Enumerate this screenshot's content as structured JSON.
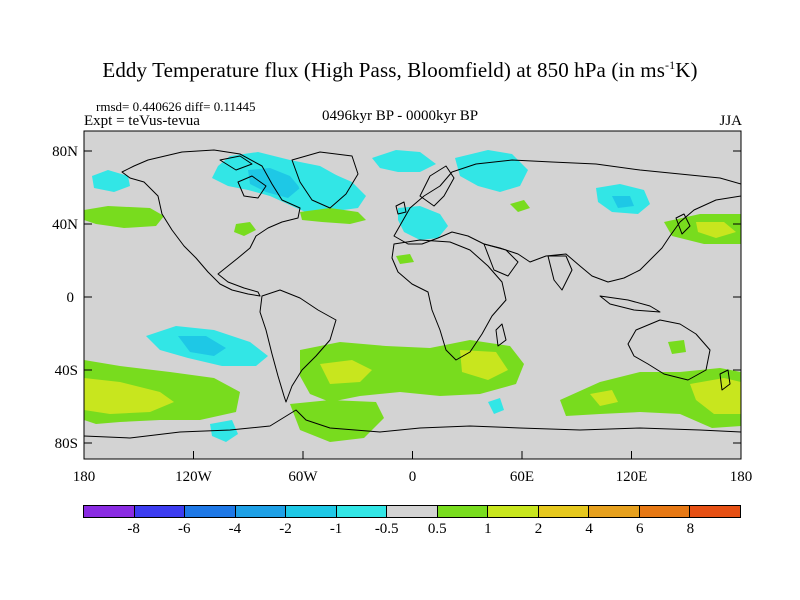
{
  "map": {
    "title_main": "Eddy Temperature flux (High Pass, Bloomfield) at 850 hPa (in ms",
    "title_sup": "-1",
    "title_end": "K)",
    "stats_text": "rmsd= 0.440626 diff= 0.11445",
    "experiment_text": "Expt = teVus-tevua",
    "period_text": "0496kyr BP - 0000kyr BP",
    "season": "JJA",
    "lat_ticks": [
      "80N",
      "40N",
      "0",
      "40S",
      "80S"
    ],
    "lon_ticks": [
      "180",
      "120W",
      "60W",
      "0",
      "60E",
      "120E",
      "180"
    ],
    "colors": {
      "land_outline": "#000000",
      "neutral": "#d3d3d3",
      "levels": [
        "#8a2be2",
        "#3c3cf0",
        "#1e78e6",
        "#1ea0e6",
        "#1ec8e6",
        "#32e6e6",
        "#d3d3d3",
        "#78dc1e",
        "#c8e61e",
        "#e6c81e",
        "#e6a01e",
        "#e67814",
        "#e65014"
      ]
    }
  },
  "colorbar": {
    "labels": [
      "-8",
      "-6",
      "-4",
      "-2",
      "-1",
      "-0.5",
      "0.5",
      "1",
      "2",
      "4",
      "6",
      "8"
    ]
  }
}
